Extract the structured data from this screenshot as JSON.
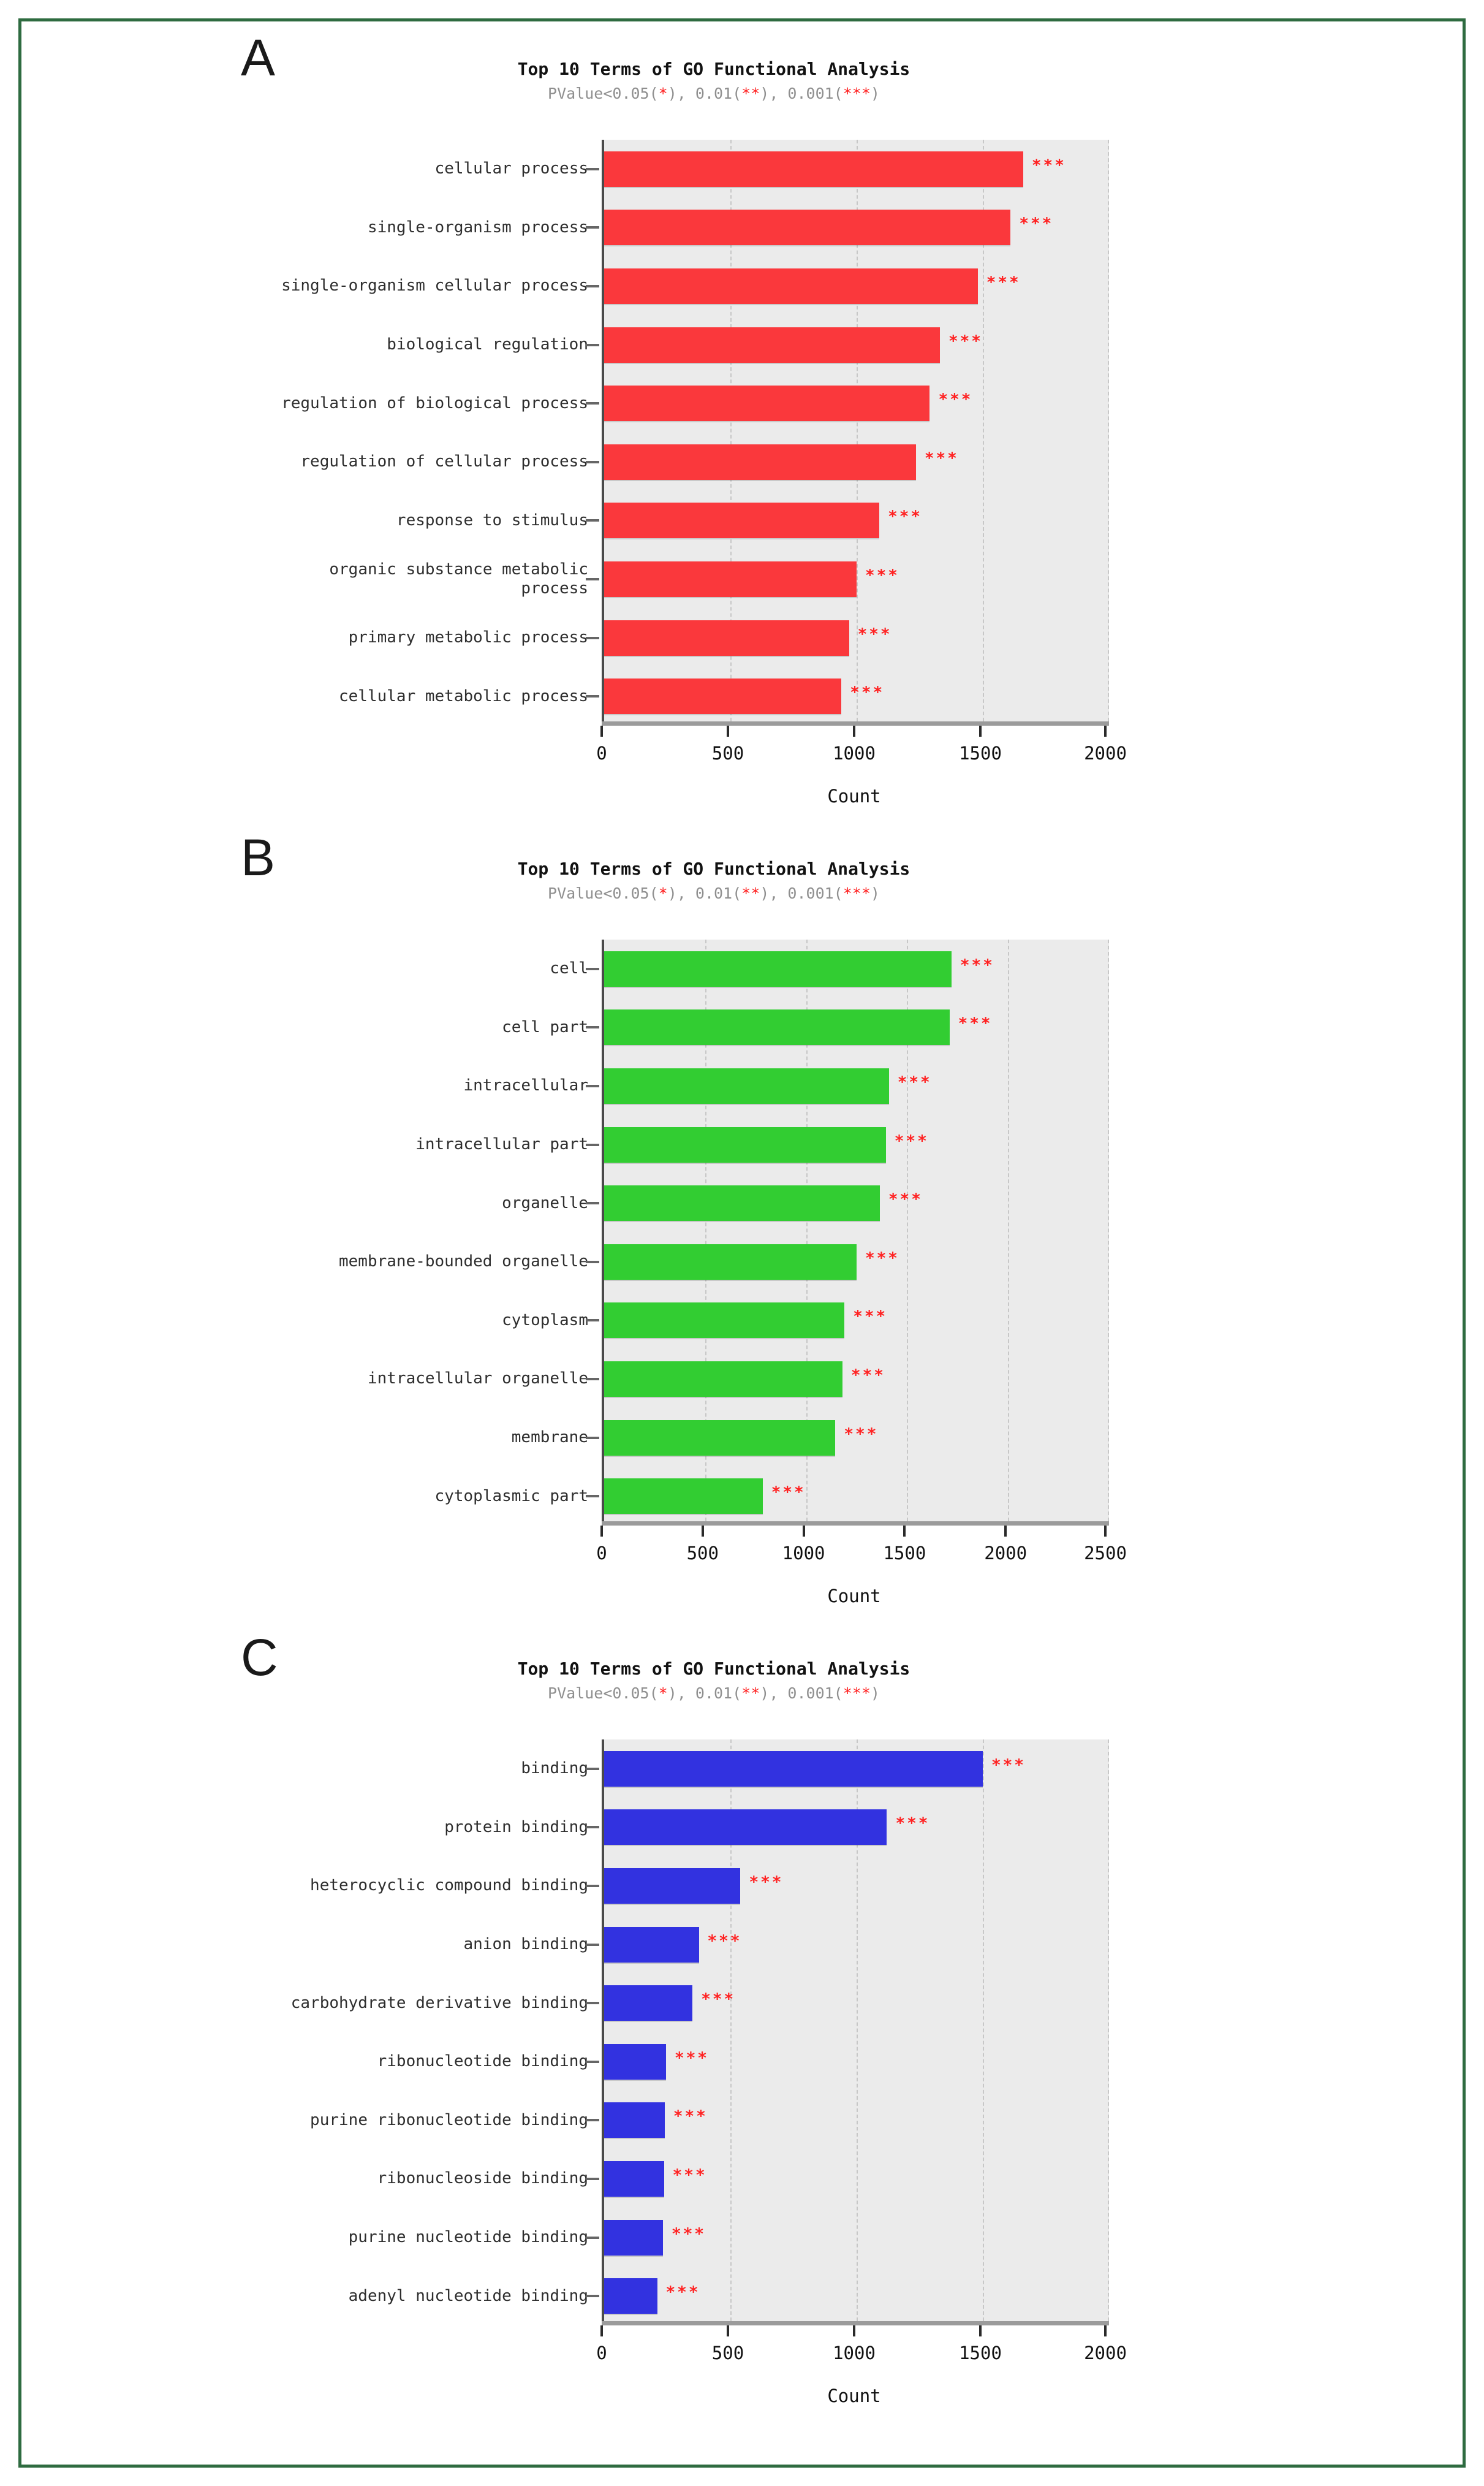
{
  "figure": {
    "border_color": "#2e6b40",
    "panel_background": "#ebebeb",
    "star_color": "#ff2222",
    "subtitle_gray": "#8f8f8f"
  },
  "chart_data": [
    {
      "type": "bar",
      "orientation": "horizontal",
      "panel_label": "A",
      "title": "Top 10 Terms of GO Functional Analysis",
      "subtitle": "PValue<0.05(*), 0.01(**), 0.001(***)",
      "subtitle_segments": [
        {
          "t": "PValue<0.05(",
          "red": false
        },
        {
          "t": "*",
          "red": true
        },
        {
          "t": "), 0.01(",
          "red": false
        },
        {
          "t": "**",
          "red": true
        },
        {
          "t": "), 0.001(",
          "red": false
        },
        {
          "t": "***",
          "red": true
        },
        {
          "t": ")",
          "red": false
        }
      ],
      "xlabel": "Count",
      "xlim": [
        0,
        2000
      ],
      "xticks": [
        0,
        500,
        1000,
        1500,
        2000
      ],
      "grid": "dashed-vertical",
      "bar_color": "#fa383c",
      "categories": [
        "cellular process",
        "single-organism process",
        "single-organism cellular process",
        "biological regulation",
        "regulation of biological process",
        "regulation of cellular process",
        "response to stimulus",
        "organic substance metabolic process",
        "primary metabolic process",
        "cellular metabolic process"
      ],
      "values": [
        1660,
        1610,
        1480,
        1330,
        1290,
        1235,
        1090,
        1000,
        970,
        940
      ],
      "significance": [
        "***",
        "***",
        "***",
        "***",
        "***",
        "***",
        "***",
        "***",
        "***",
        "***"
      ]
    },
    {
      "type": "bar",
      "orientation": "horizontal",
      "panel_label": "B",
      "title": "Top 10 Terms of GO Functional Analysis",
      "subtitle": "PValue<0.05(*), 0.01(**), 0.001(***)",
      "subtitle_segments": [
        {
          "t": "PValue<0.05(",
          "red": false
        },
        {
          "t": "*",
          "red": true
        },
        {
          "t": "), 0.01(",
          "red": false
        },
        {
          "t": "**",
          "red": true
        },
        {
          "t": "), 0.001(",
          "red": false
        },
        {
          "t": "***",
          "red": true
        },
        {
          "t": ")",
          "red": false
        }
      ],
      "xlabel": "Count",
      "xlim": [
        0,
        2500
      ],
      "xticks": [
        0,
        500,
        1000,
        1500,
        2000,
        2500
      ],
      "grid": "dashed-vertical",
      "bar_color": "#32cd32",
      "categories": [
        "cell",
        "cell part",
        "intracellular",
        "intracellular part",
        "organelle",
        "membrane-bounded organelle",
        "cytoplasm",
        "intracellular organelle",
        "membrane",
        "cytoplasmic part"
      ],
      "values": [
        1720,
        1710,
        1410,
        1395,
        1365,
        1250,
        1190,
        1180,
        1145,
        785
      ],
      "significance": [
        "***",
        "***",
        "***",
        "***",
        "***",
        "***",
        "***",
        "***",
        "***",
        "***"
      ]
    },
    {
      "type": "bar",
      "orientation": "horizontal",
      "panel_label": "C",
      "title": "Top 10 Terms of GO Functional Analysis",
      "subtitle": "PValue<0.05(*), 0.01(**), 0.001(***)",
      "subtitle_segments": [
        {
          "t": "PValue<0.05(",
          "red": false
        },
        {
          "t": "*",
          "red": true
        },
        {
          "t": "), 0.01(",
          "red": false
        },
        {
          "t": "**",
          "red": true
        },
        {
          "t": "), 0.001(",
          "red": false
        },
        {
          "t": "***",
          "red": true
        },
        {
          "t": ")",
          "red": false
        }
      ],
      "xlabel": "Count",
      "xlim": [
        0,
        2000
      ],
      "xticks": [
        0,
        500,
        1000,
        1500,
        2000
      ],
      "grid": "dashed-vertical",
      "bar_color": "#3232e0",
      "categories": [
        "binding",
        "protein binding",
        "heterocyclic compound binding",
        "anion binding",
        "carbohydrate derivative binding",
        "ribonucleotide binding",
        "purine ribonucleotide binding",
        "ribonucleoside binding",
        "purine nucleotide binding",
        "adenyl nucleotide binding"
      ],
      "values": [
        1500,
        1120,
        540,
        375,
        350,
        245,
        240,
        237,
        233,
        210
      ],
      "significance": [
        "***",
        "***",
        "***",
        "***",
        "***",
        "***",
        "***",
        "***",
        "***",
        "***"
      ]
    }
  ]
}
